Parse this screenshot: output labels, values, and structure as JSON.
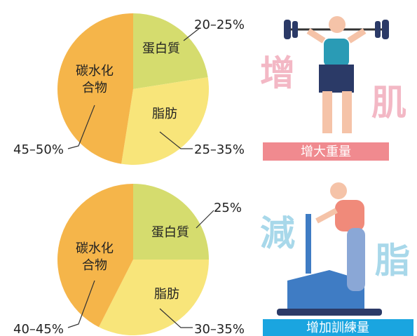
{
  "chart_data": [
    {
      "type": "pie",
      "categories": [
        "蛋白質",
        "脂肪",
        "碳水化合物"
      ],
      "values": [
        22.5,
        30,
        47.5
      ],
      "value_labels": [
        "20–25%",
        "25–35%",
        "45–50%"
      ],
      "colors": [
        "#d5dc6e",
        "#f8e57a",
        "#f5b54a"
      ]
    },
    {
      "type": "pie",
      "categories": [
        "蛋白質",
        "脂肪",
        "碳水化合物"
      ],
      "values": [
        25,
        32.5,
        42.5
      ],
      "value_labels": [
        "25%",
        "30–35%",
        "40–45%"
      ],
      "colors": [
        "#d5dc6e",
        "#f8e57a",
        "#f5b54a"
      ]
    }
  ],
  "illustrations": [
    {
      "left_char": "增",
      "right_char": "肌",
      "banner": "增大重量"
    },
    {
      "left_char": "減",
      "right_char": "脂",
      "banner": "增加訓練量"
    }
  ]
}
